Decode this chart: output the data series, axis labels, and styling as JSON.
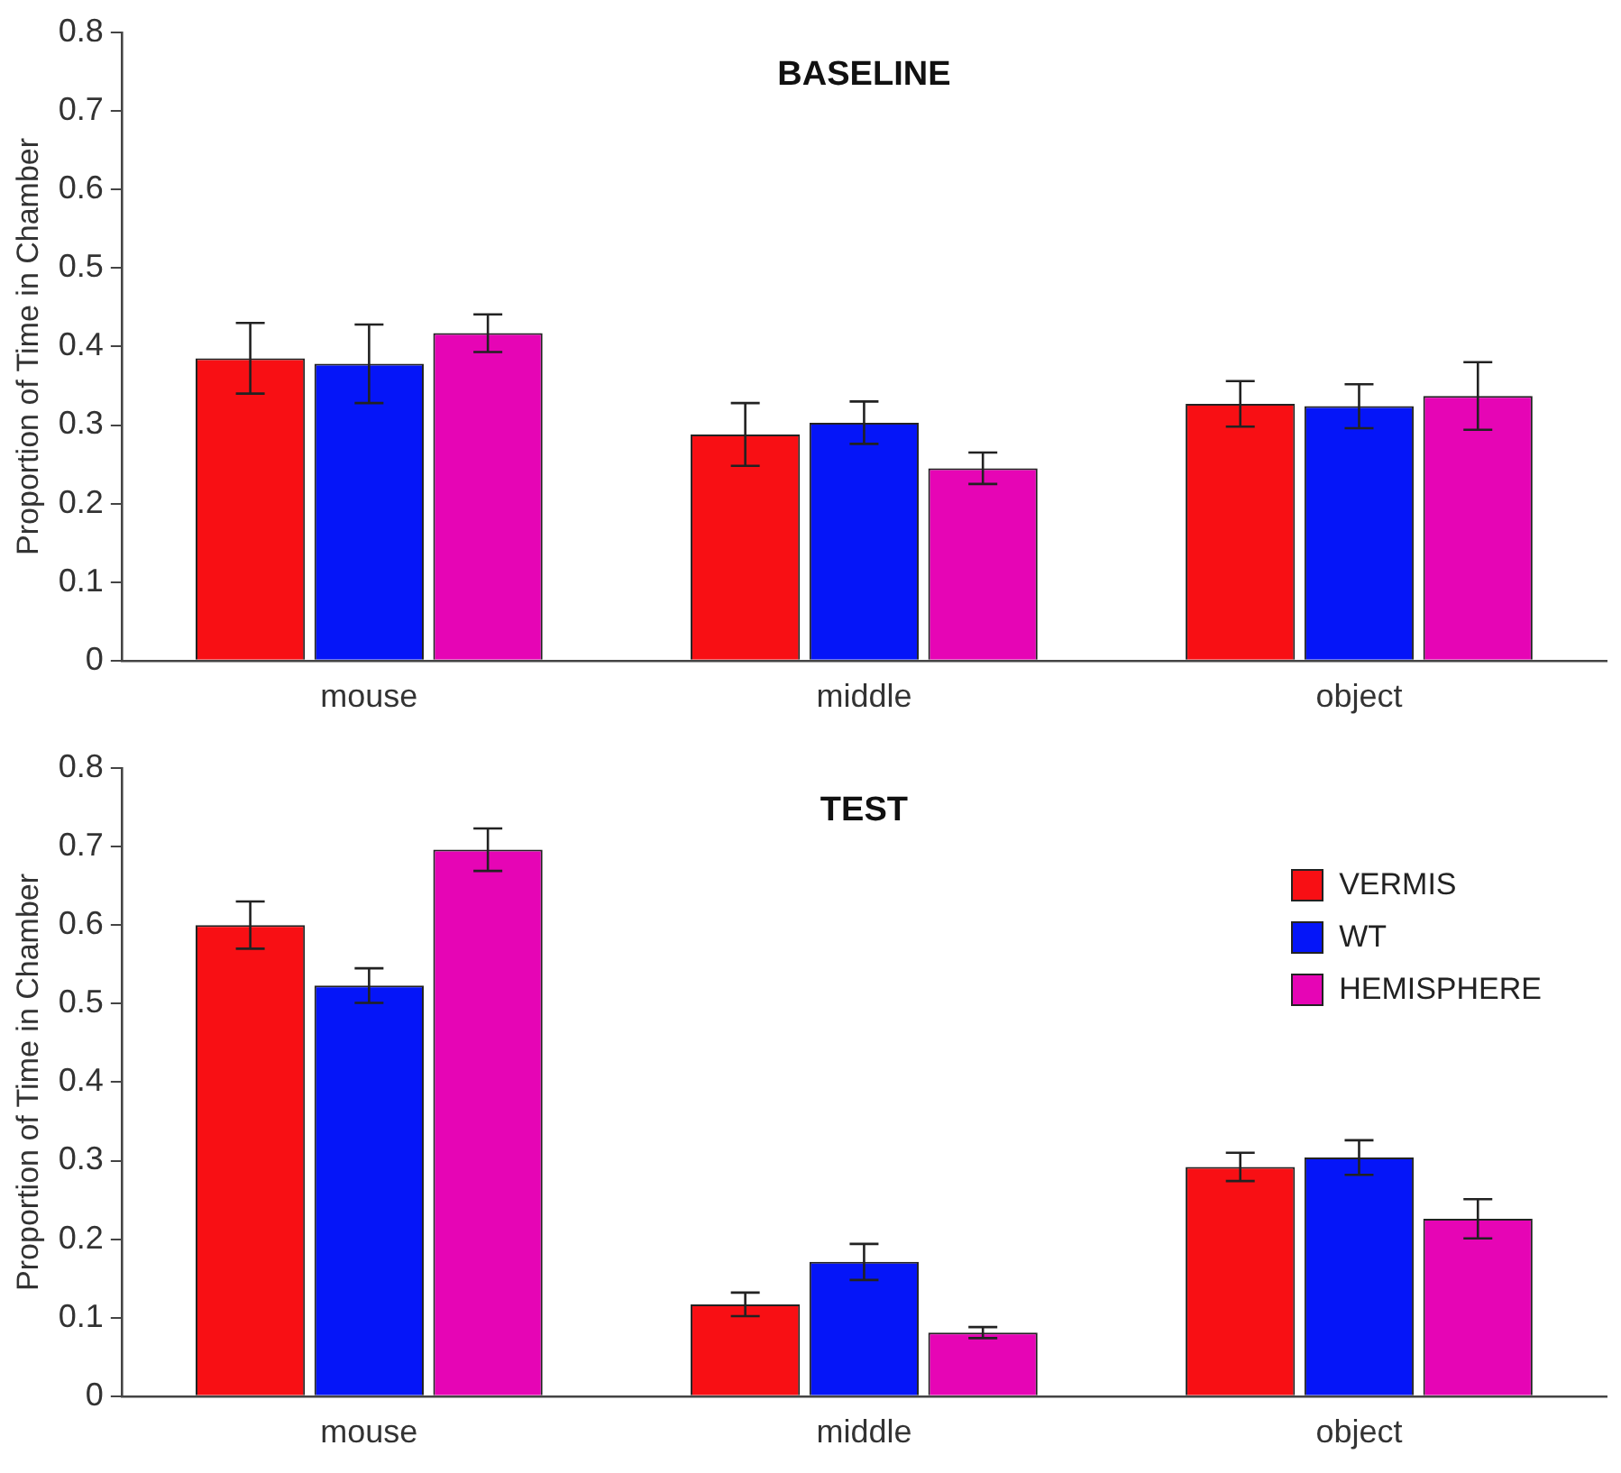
{
  "chart_data": [
    {
      "type": "bar",
      "title": "BASELINE",
      "ylabel": "Proportion of Time in Chamber",
      "categories": [
        "mouse",
        "middle",
        "object"
      ],
      "series": [
        {
          "color": "#f80f14",
          "values": [
            0.385,
            0.288,
            0.327
          ],
          "errors": [
            0.045,
            0.04,
            0.029
          ]
        },
        {
          "color": "#0515f8",
          "values": [
            0.378,
            0.303,
            0.324
          ],
          "errors": [
            0.05,
            0.027,
            0.028
          ]
        },
        {
          "color": "#e605b5",
          "values": [
            0.417,
            0.245,
            0.337
          ],
          "errors": [
            0.024,
            0.02,
            0.043
          ]
        }
      ],
      "ylim": [
        0,
        0.8
      ],
      "yticks": [
        0,
        0.1,
        0.2,
        0.3,
        0.4,
        0.5,
        0.6,
        0.7,
        0.8
      ],
      "grid": false,
      "legend": false
    },
    {
      "type": "bar",
      "title": "TEST",
      "ylabel": "Proportion of Time in Chamber",
      "categories": [
        "mouse",
        "middle",
        "object"
      ],
      "series": [
        {
          "name": "VERMIS",
          "color": "#f80f14",
          "values": [
            0.6,
            0.117,
            0.292
          ],
          "errors": [
            0.03,
            0.015,
            0.018
          ]
        },
        {
          "name": "WT",
          "color": "#0515f8",
          "values": [
            0.523,
            0.171,
            0.304
          ],
          "errors": [
            0.022,
            0.023,
            0.022
          ]
        },
        {
          "name": "HEMISPHERE",
          "color": "#e605b5",
          "values": [
            0.696,
            0.081,
            0.226
          ],
          "errors": [
            0.027,
            0.007,
            0.025
          ]
        }
      ],
      "ylim": [
        0,
        0.8
      ],
      "yticks": [
        0,
        0.1,
        0.2,
        0.3,
        0.4,
        0.5,
        0.6,
        0.7,
        0.8
      ],
      "grid": false,
      "legend": "top right"
    }
  ]
}
